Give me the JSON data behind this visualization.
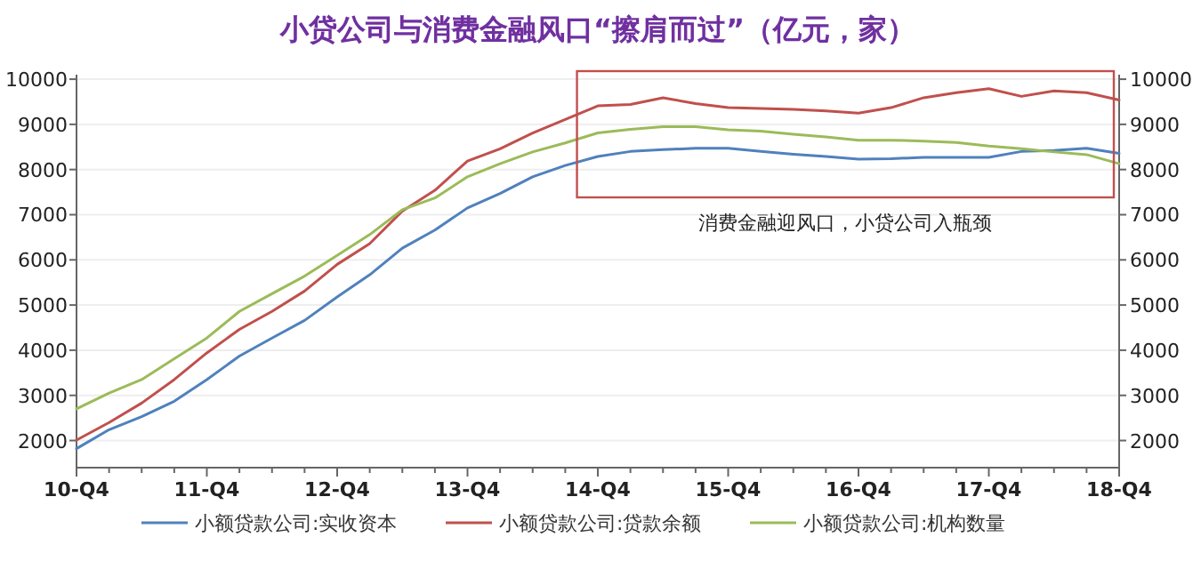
{
  "chart_data": {
    "type": "line",
    "title": "小贷公司与消费金融风口“擦肩而过”（亿元，家）",
    "categories": [
      "10-Q4",
      null,
      null,
      null,
      "11-Q4",
      null,
      null,
      null,
      "12-Q4",
      null,
      null,
      null,
      "13-Q4",
      null,
      null,
      null,
      "14-Q4",
      null,
      null,
      null,
      "15-Q4",
      null,
      null,
      null,
      "16-Q4",
      null,
      null,
      null,
      "17-Q4",
      null,
      null,
      null,
      "18-Q4"
    ],
    "series": [
      {
        "name": "小额贷款公司:实收资本",
        "color": "#4f81bd",
        "values": [
          1820,
          2240,
          2530,
          2870,
          3350,
          3870,
          4270,
          4660,
          5180,
          5670,
          6260,
          6660,
          7150,
          7470,
          7840,
          8090,
          8290,
          8400,
          8440,
          8470,
          8470,
          8400,
          8340,
          8290,
          8230,
          8240,
          8270,
          8270,
          8270,
          8400,
          8420,
          8470,
          8360
        ]
      },
      {
        "name": "小额贷款公司:贷款余额",
        "color": "#c0504d",
        "values": [
          2010,
          2400,
          2830,
          3350,
          3940,
          4460,
          4860,
          5310,
          5900,
          6360,
          7080,
          7540,
          8190,
          8460,
          8810,
          9110,
          9410,
          9440,
          9590,
          9460,
          9370,
          9350,
          9330,
          9300,
          9250,
          9370,
          9590,
          9700,
          9790,
          9620,
          9740,
          9700,
          9540
        ]
      },
      {
        "name": "小额贷款公司:机构数量",
        "color": "#9bbb59",
        "values": [
          2700,
          3050,
          3350,
          3810,
          4270,
          4860,
          5250,
          5640,
          6100,
          6560,
          7110,
          7370,
          7840,
          8130,
          8390,
          8590,
          8810,
          8890,
          8950,
          8950,
          8880,
          8850,
          8780,
          8720,
          8650,
          8650,
          8630,
          8600,
          8520,
          8460,
          8390,
          8330,
          8130
        ]
      }
    ],
    "ylim": [
      1400,
      10100
    ],
    "yticks": [
      2000,
      3000,
      4000,
      5000,
      6000,
      7000,
      8000,
      9000,
      10000
    ],
    "y2lim": [
      1400,
      10100
    ],
    "y2ticks": [
      2000,
      3000,
      4000,
      5000,
      6000,
      7000,
      8000,
      9000,
      10000
    ],
    "annotations": [
      "消费金融迎风口，小贷公司入瓶颈"
    ],
    "grid": "y",
    "legend": "bottom",
    "marker": "none",
    "line_style": "solid"
  }
}
